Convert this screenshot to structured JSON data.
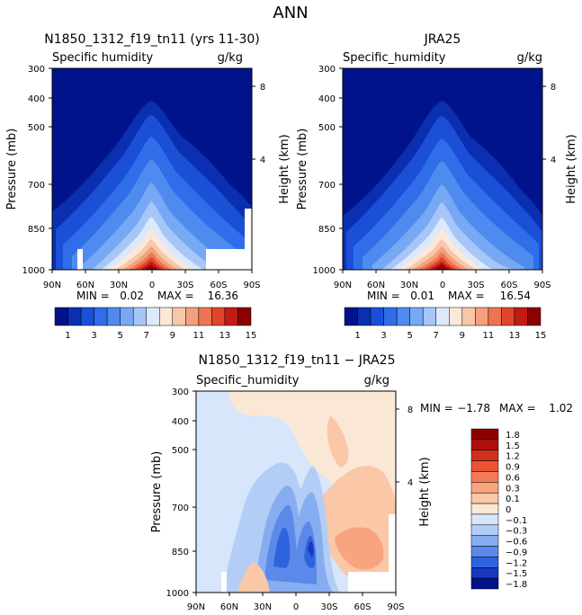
{
  "page_title": "ANN",
  "chart_data": [
    {
      "type": "heatmap",
      "title": "N1850_1312_f19_tn11 (yrs 11-30)",
      "variable": "Specific humidity",
      "units": "g/kg",
      "ylabel": "Pressure (mb)",
      "ylabel_right": "Height (km)",
      "x_ticks": [
        "90N",
        "60N",
        "30N",
        "0",
        "30S",
        "60S",
        "90S"
      ],
      "y_ticks": [
        "300",
        "400",
        "500",
        "700",
        "850",
        "1000"
      ],
      "height_ticks": [
        "8",
        "4"
      ],
      "xlim": [
        90,
        -90
      ],
      "ylim_mb": [
        1000,
        300
      ],
      "min_label": "MIN =",
      "min_value": "0.02",
      "max_label": "MAX =",
      "max_value": "16.36",
      "min": 0.02,
      "max": 16.36,
      "colorbar_labels": [
        "1",
        "3",
        "5",
        "7",
        "9",
        "11",
        "13",
        "15"
      ],
      "colorbar_levels": [
        1,
        2,
        3,
        4,
        5,
        6,
        7,
        8,
        9,
        10,
        11,
        12,
        13,
        14,
        15
      ]
    },
    {
      "type": "heatmap",
      "title": "JRA25",
      "variable": "Specific_humidity",
      "units": "g/kg",
      "ylabel": "Pressure (mb)",
      "ylabel_right": "Height (km)",
      "x_ticks": [
        "90N",
        "60N",
        "30N",
        "0",
        "30S",
        "60S",
        "90S"
      ],
      "y_ticks": [
        "300",
        "400",
        "500",
        "700",
        "850",
        "1000"
      ],
      "height_ticks": [
        "8",
        "4"
      ],
      "xlim": [
        90,
        -90
      ],
      "ylim_mb": [
        1000,
        300
      ],
      "min_label": "MIN =",
      "min_value": "0.01",
      "max_label": "MAX =",
      "max_value": "16.54",
      "min": 0.01,
      "max": 16.54,
      "colorbar_labels": [
        "1",
        "3",
        "5",
        "7",
        "9",
        "11",
        "13",
        "15"
      ],
      "colorbar_levels": [
        1,
        2,
        3,
        4,
        5,
        6,
        7,
        8,
        9,
        10,
        11,
        12,
        13,
        14,
        15
      ]
    },
    {
      "type": "heatmap",
      "title": "N1850_1312_f19_tn11 − JRA25",
      "variable": "Specific_humidity",
      "units": "g/kg",
      "ylabel": "Pressure (mb)",
      "ylabel_right": "Height (km)",
      "x_ticks": [
        "90N",
        "60N",
        "30N",
        "0",
        "30S",
        "60S",
        "90S"
      ],
      "y_ticks": [
        "300",
        "400",
        "500",
        "700",
        "850",
        "1000"
      ],
      "height_ticks": [
        "8",
        "4"
      ],
      "xlim": [
        90,
        -90
      ],
      "ylim_mb": [
        1000,
        300
      ],
      "min_label": "MIN =",
      "min_value": "−1.78",
      "max_label": "MAX =",
      "max_value": "1.02",
      "min": -1.78,
      "max": 1.02,
      "colorbar_labels": [
        "1.8",
        "1.5",
        "1.2",
        "0.9",
        "0.6",
        "0.3",
        "0.1",
        "0",
        "−0.1",
        "−0.3",
        "−0.6",
        "−0.9",
        "−1.2",
        "−1.5",
        "−1.8"
      ],
      "colorbar_levels": [
        1.8,
        1.5,
        1.2,
        0.9,
        0.6,
        0.3,
        0.1,
        0,
        -0.1,
        -0.3,
        -0.6,
        -0.9,
        -1.2,
        -1.5,
        -1.8
      ]
    }
  ],
  "colors": {
    "seq": [
      "#00138a",
      "#0a2fb0",
      "#1a4fd6",
      "#2f6ee8",
      "#4f8bef",
      "#77a8f4",
      "#a7c6f8",
      "#dce9fb",
      "#fbe8d8",
      "#f8c6a8",
      "#f4a07d",
      "#ee7451",
      "#e1452b",
      "#c21a16",
      "#8c0000"
    ],
    "div": [
      "#8c0000",
      "#b20f0c",
      "#d1301b",
      "#ea5433",
      "#f47b55",
      "#f8a47f",
      "#fac7a7",
      "#fbe7d5",
      "#d7e6fa",
      "#b3cef6",
      "#87adf1",
      "#5b89ea",
      "#2f63de",
      "#1738bf",
      "#00138a"
    ]
  }
}
